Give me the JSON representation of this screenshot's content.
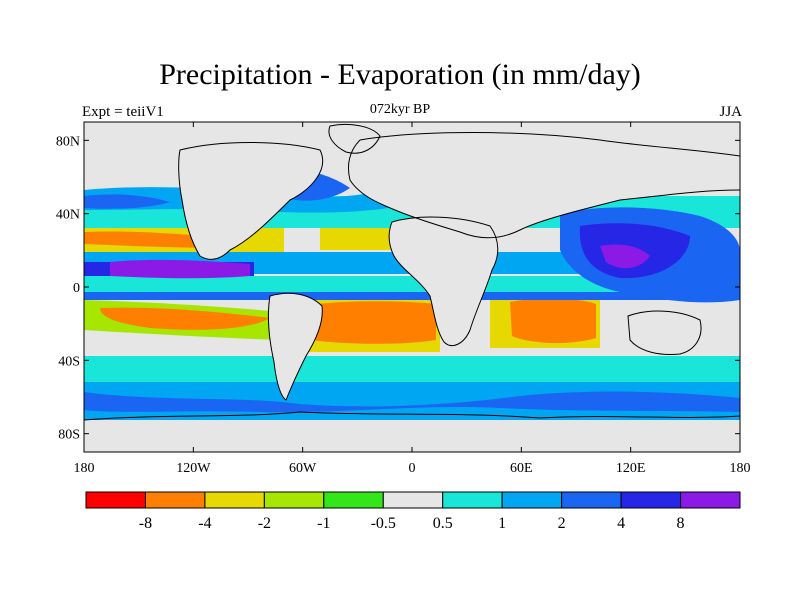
{
  "header": {
    "title": "Precipitation - Evaporation (in mm/day)",
    "subtitle": "072kyr BP",
    "left_label": "Expt = teiiV1",
    "right_label": "JJA"
  },
  "map": {
    "lon_range": [
      -180,
      180
    ],
    "lat_range": [
      -90,
      90
    ],
    "x_ticks": [
      {
        "lon": -180,
        "label": "180"
      },
      {
        "lon": -120,
        "label": "120W"
      },
      {
        "lon": -60,
        "label": "60W"
      },
      {
        "lon": 0,
        "label": "0"
      },
      {
        "lon": 60,
        "label": "60E"
      },
      {
        "lon": 120,
        "label": "120E"
      },
      {
        "lon": 180,
        "label": "180"
      }
    ],
    "y_ticks": [
      {
        "lat": 80,
        "label": "80N"
      },
      {
        "lat": 40,
        "label": "40N"
      },
      {
        "lat": 0,
        "label": "0"
      },
      {
        "lat": -40,
        "label": "40S"
      },
      {
        "lat": -80,
        "label": "80S"
      }
    ]
  },
  "colorbar": {
    "colors": [
      "#ff0000",
      "#ff8000",
      "#e6d800",
      "#a6e600",
      "#33e619",
      "#e6e6e6",
      "#19e6d8",
      "#00a6f2",
      "#1a66f2",
      "#2626e6",
      "#8c1ae6"
    ],
    "labels": [
      "-8",
      "-4",
      "-2",
      "-1",
      "-0.5",
      "0.5",
      "1",
      "2",
      "4",
      "8"
    ]
  }
}
